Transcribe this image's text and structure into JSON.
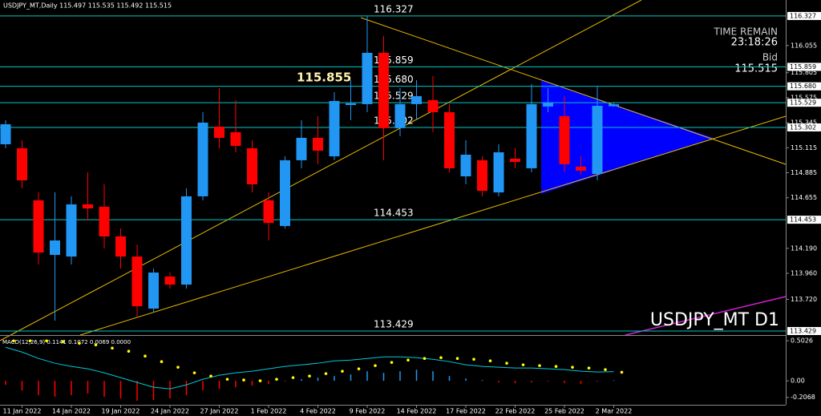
{
  "chart_data": [
    {
      "type": "candlestick",
      "header": "USDJPY_MT,Daily  115.497 115.535 115.492 115.515",
      "time_remain_label": "TIME REMAIN",
      "time_remain": "23:18:26",
      "bid_label": "Bid",
      "bid": 115.515,
      "symbol_label": "USDJPY_MT D1",
      "annotation": 115.855,
      "up_color": "#2196f3",
      "down_color": "#ff0000",
      "categories": [
        null,
        "11 Jan 2022",
        null,
        null,
        "14 Jan 2022",
        null,
        null,
        "19 Jan 2022",
        null,
        null,
        "24 Jan 2022",
        null,
        null,
        "27 Jan 2022",
        null,
        null,
        "1 Feb 2022",
        null,
        null,
        "4 Feb 2022",
        null,
        null,
        "9 Feb 2022",
        null,
        null,
        "14 Feb 2022",
        null,
        null,
        "17 Feb 2022",
        null,
        null,
        "22 Feb 2022",
        null,
        null,
        "25 Feb 2022",
        null,
        null,
        "2 Mar 2022"
      ],
      "open": [
        115.147,
        115.11,
        114.631,
        114.129,
        114.114,
        114.594,
        114.572,
        114.299,
        114.114,
        113.635,
        113.93,
        113.856,
        114.668,
        115.309,
        115.258,
        115.11,
        114.631,
        114.395,
        115.0,
        115.206,
        115.036,
        115.508,
        115.516,
        115.988,
        115.295,
        115.516,
        115.553,
        115.442,
        114.852,
        115.0,
        114.704,
        115.014,
        114.926,
        115.494,
        115.405,
        114.941,
        114.874,
        115.497
      ],
      "high": [
        115.368,
        115.184,
        114.704,
        114.704,
        114.668,
        114.889,
        114.778,
        114.373,
        114.225,
        114.004,
        113.967,
        114.741,
        115.442,
        115.663,
        115.553,
        115.184,
        114.704,
        115.036,
        115.368,
        115.405,
        115.626,
        115.737,
        116.327,
        116.143,
        115.663,
        115.737,
        115.774,
        115.516,
        115.184,
        115.036,
        115.147,
        115.11,
        115.7,
        115.663,
        115.59,
        115.036,
        115.678,
        115.535
      ],
      "low": [
        115.11,
        114.741,
        114.041,
        113.525,
        114.041,
        114.446,
        114.188,
        114.004,
        113.561,
        113.598,
        113.82,
        113.82,
        114.631,
        115.11,
        115.073,
        114.704,
        114.262,
        114.373,
        114.926,
        114.963,
        115.0,
        115.368,
        115.442,
        115.0,
        115.221,
        115.368,
        115.258,
        114.889,
        114.778,
        114.668,
        114.668,
        114.926,
        114.889,
        115.442,
        114.889,
        114.867,
        114.815,
        115.492
      ],
      "close": [
        115.331,
        114.815,
        114.151,
        114.262,
        114.594,
        114.557,
        114.299,
        114.114,
        113.657,
        113.967,
        113.856,
        114.668,
        115.346,
        115.206,
        115.132,
        114.778,
        114.424,
        115.0,
        115.206,
        115.088,
        115.545,
        115.523,
        115.988,
        115.295,
        115.516,
        115.59,
        115.442,
        114.926,
        115.051,
        114.719,
        115.073,
        114.985,
        115.516,
        115.531,
        114.963,
        114.904,
        115.501,
        115.515
      ],
      "levels": [
        116.327,
        115.859,
        {
          "value": 115.68,
          "label": "115.680"
        },
        115.529,
        115.302,
        114.453,
        113.429
      ],
      "level_color": "#00c8c8",
      "ylim": [
        113.392,
        116.474
      ],
      "yticks": [
        116.055,
        115.805,
        115.575,
        115.345,
        115.115,
        114.885,
        114.655,
        {
          "value": 114.19,
          "label": "114.190"
        },
        {
          "value": 113.96,
          "label": "113.960"
        },
        {
          "value": 113.72,
          "label": "113.720"
        }
      ]
    },
    {
      "type": "macd",
      "title": "MACD(12,26,9) 0.1141 0.1072 0.0069 0.0000",
      "histogram": [
        -0.05,
        -0.12,
        -0.18,
        -0.2,
        -0.18,
        -0.16,
        -0.2,
        -0.22,
        -0.25,
        -0.24,
        -0.22,
        -0.18,
        -0.12,
        -0.1,
        -0.08,
        -0.06,
        -0.04,
        -0.01,
        0.02,
        0.04,
        0.06,
        0.08,
        0.12,
        0.1,
        0.12,
        0.14,
        0.12,
        0.06,
        0.03,
        0.01,
        -0.02,
        -0.03,
        -0.02,
        -0.01,
        -0.03,
        -0.04,
        -0.01,
        0.0069
      ],
      "macd": [
        0.42,
        0.36,
        0.28,
        0.22,
        0.18,
        0.15,
        0.1,
        0.04,
        -0.02,
        -0.08,
        -0.1,
        -0.05,
        0.02,
        0.07,
        0.1,
        0.12,
        0.15,
        0.18,
        0.2,
        0.22,
        0.25,
        0.26,
        0.28,
        0.3,
        0.3,
        0.29,
        0.27,
        0.24,
        0.2,
        0.18,
        0.17,
        0.16,
        0.16,
        0.15,
        0.14,
        0.12,
        0.11,
        0.1141
      ],
      "signal": [
        0.5,
        0.5,
        0.5,
        0.49,
        0.47,
        0.45,
        0.41,
        0.37,
        0.31,
        0.24,
        0.17,
        0.1,
        0.06,
        0.02,
        0.01,
        0.0,
        0.02,
        0.04,
        0.06,
        0.09,
        0.12,
        0.15,
        0.19,
        0.23,
        0.26,
        0.28,
        0.29,
        0.28,
        0.27,
        0.25,
        0.22,
        0.2,
        0.19,
        0.18,
        0.17,
        0.16,
        0.14,
        0.1072
      ],
      "macd_color": "#00c8d8",
      "signal_color": "#ffff00",
      "up_color": "#2196f3",
      "down_color": "#ff0000",
      "ylim": [
        -0.3,
        0.553
      ],
      "yticks": [
        0.5026,
        {
          "value": 0,
          "label": "0.00"
        },
        -0.2068
      ]
    }
  ]
}
